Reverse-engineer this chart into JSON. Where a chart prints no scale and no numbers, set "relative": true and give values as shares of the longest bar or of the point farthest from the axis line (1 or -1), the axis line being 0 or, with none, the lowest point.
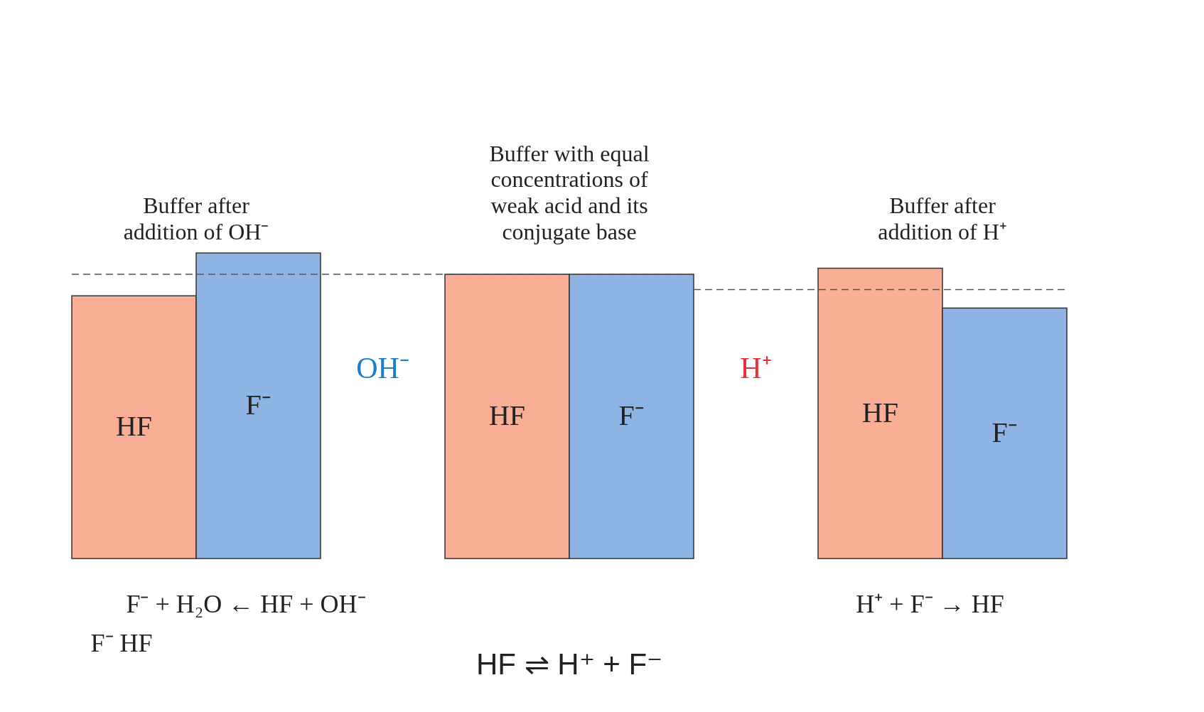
{
  "chart_data": {
    "type": "bar",
    "relative": true,
    "categories": [
      "HF",
      "F⁻",
      null,
      "HF",
      "F⁻",
      null,
      "HF",
      "F⁻"
    ],
    "values": [
      0.86,
      1,
      null,
      0.93,
      0.93,
      null,
      0.95,
      0.82
    ],
    "colors": [
      "#f9ae96",
      "#8db4e2",
      null,
      "#f9ae96",
      "#8db4e2",
      null,
      "#f9ae96",
      "#8db4e2"
    ],
    "ref_lines": [
      {
        "axis": "y",
        "value": 0.93,
        "line_style": "dashed"
      },
      {
        "axis": "y",
        "value": 0.88,
        "line_style": "dashed"
      }
    ],
    "annotations": [
      "Buffer after\naddition of OH⁻",
      "Buffer with equal\nconcentrations of\nweak acid and its\nconjugate base",
      "Buffer after\naddition of H⁺",
      "OH⁻",
      "H⁺",
      "F⁻ + H₂O ← HF + OH⁻",
      "F⁻   HF",
      "H⁺ + F⁻ → HF",
      "HF ⇌ H⁺ + F⁻"
    ]
  }
}
